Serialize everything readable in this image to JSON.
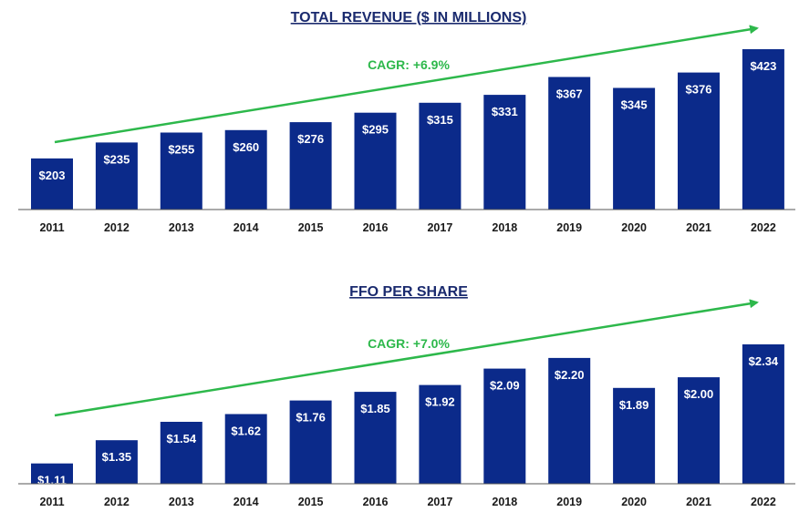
{
  "colors": {
    "bar": "#0b2a8a",
    "trend": "#2db84b",
    "axis": "#555555",
    "title": "#1a2a6e"
  },
  "chart_data": [
    {
      "type": "bar",
      "title": "TOTAL REVENUE ($ IN MILLIONS)",
      "categories": [
        "2011",
        "2012",
        "2013",
        "2014",
        "2015",
        "2016",
        "2017",
        "2018",
        "2019",
        "2020",
        "2021",
        "2022"
      ],
      "values": [
        203,
        235,
        255,
        260,
        276,
        295,
        315,
        331,
        367,
        345,
        376,
        423
      ],
      "labels": [
        "$203",
        "$235",
        "$255",
        "$260",
        "$276",
        "$295",
        "$315",
        "$331",
        "$367",
        "$345",
        "$376",
        "$423"
      ],
      "annotation": "CAGR: +6.9%",
      "ylim": [
        100,
        450
      ],
      "grid": false
    },
    {
      "type": "bar",
      "title": "FFO PER SHARE",
      "categories": [
        "2011",
        "2012",
        "2013",
        "2014",
        "2015",
        "2016",
        "2017",
        "2018",
        "2019",
        "2020",
        "2021",
        "2022"
      ],
      "values": [
        1.11,
        1.35,
        1.54,
        1.62,
        1.76,
        1.85,
        1.92,
        2.09,
        2.2,
        1.89,
        2.0,
        2.34
      ],
      "labels": [
        "$1.11",
        "$1.35",
        "$1.54",
        "$1.62",
        "$1.76",
        "$1.85",
        "$1.92",
        "$2.09",
        "$2.20",
        "$1.89",
        "$2.00",
        "$2.34"
      ],
      "annotation": "CAGR: +7.0%",
      "ylim": [
        0.9,
        2.4
      ],
      "grid": false
    }
  ]
}
